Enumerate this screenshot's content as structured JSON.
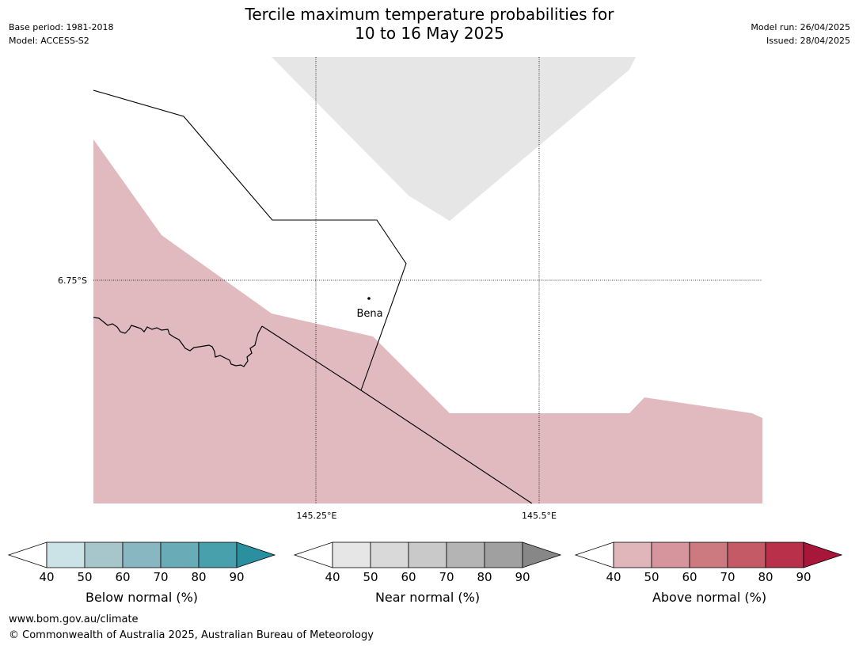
{
  "header": {
    "title_line1": "Tercile maximum temperature probabilities for",
    "title_line2": "10 to 16 May 2025",
    "base_period": "Base period: 1981-2018",
    "model": "Model: ACCESS-S2",
    "model_run": "Model run: 26/04/2025",
    "issued": "Issued: 28/04/2025"
  },
  "map": {
    "lat_label": "6.75°S",
    "lon_labels": [
      "145.25°E",
      "145.5°E"
    ],
    "place": {
      "name": "Bena"
    },
    "fill_colors": {
      "above_normal_40_50": "#e0babe",
      "near_normal_40_50": "#e6e6e6"
    }
  },
  "colorbars": [
    {
      "label": "Below normal (%)",
      "ticks": [
        "40",
        "50",
        "60",
        "70",
        "80",
        "90"
      ],
      "colors": [
        "#ffffff",
        "#cbe2e7",
        "#a6c6cb",
        "#88b6c1",
        "#6aabb8",
        "#48a0ad",
        "#2a8f9f"
      ]
    },
    {
      "label": "Near normal (%)",
      "ticks": [
        "40",
        "50",
        "60",
        "70",
        "80",
        "90"
      ],
      "colors": [
        "#ffffff",
        "#e6e6e6",
        "#d9d9d9",
        "#c9c9c9",
        "#b4b4b4",
        "#a0a0a0",
        "#878787"
      ]
    },
    {
      "label": "Above normal (%)",
      "ticks": [
        "40",
        "50",
        "60",
        "70",
        "80",
        "90"
      ],
      "colors": [
        "#ffffff",
        "#e0b6bb",
        "#d6959c",
        "#cc7a80",
        "#c35a65",
        "#b8304a",
        "#a8173a"
      ]
    }
  ],
  "footer": {
    "url": "www.bom.gov.au/climate",
    "copyright": "© Commonwealth of Australia 2025, Australian Bureau of Meteorology"
  }
}
